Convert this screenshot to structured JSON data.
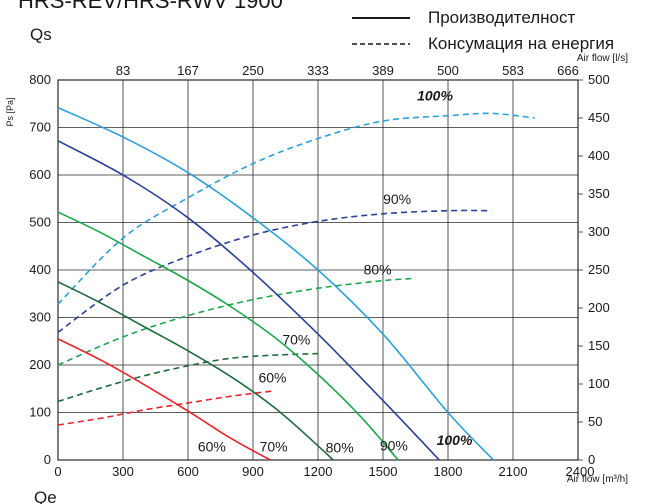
{
  "chart_data": {
    "type": "line",
    "title_partial": "HRS-REV/HRS-RWV 1900",
    "legend": {
      "performance_label": "Производителност",
      "power_label": "Консумация на енергия"
    },
    "left_axis": {
      "top_label": "Qs",
      "ylabel": "Ps [Pa]",
      "ylim": [
        0,
        800
      ],
      "ticks": [
        "0",
        "100",
        "200",
        "300",
        "400",
        "500",
        "600",
        "700",
        "800"
      ]
    },
    "right_axis": {
      "ylim": [
        0,
        500
      ],
      "ticks": [
        "0",
        "50",
        "100",
        "150",
        "200",
        "250",
        "300",
        "350",
        "400",
        "450",
        "500"
      ]
    },
    "bottom_axis": {
      "xlabel": "Air flow [m³/h]",
      "xlim": [
        0,
        2400
      ],
      "ticks": [
        "0",
        "300",
        "600",
        "900",
        "1200",
        "1500",
        "1800",
        "2100",
        "2400"
      ],
      "bottom_label": "Qe"
    },
    "top_axis": {
      "xlabel": "Air flow [l/s]",
      "ticks": [
        "83",
        "167",
        "250",
        "333",
        "389",
        "500",
        "583",
        "666"
      ]
    },
    "grid": true,
    "colors": {
      "red": "#e8232a",
      "dark_green": "#1d6b3c",
      "green": "#1ca64c",
      "navy": "#2b3f98",
      "light_blue": "#2da0d8"
    },
    "performance_series": [
      {
        "color": "red",
        "x": [
          0,
          200,
          400,
          600,
          800,
          980
        ],
        "y": [
          255,
          210,
          158,
          103,
          45,
          0
        ]
      },
      {
        "color": "dark_green",
        "x": [
          0,
          200,
          400,
          600,
          800,
          1000,
          1200,
          1270
        ],
        "y": [
          375,
          330,
          280,
          230,
          175,
          110,
          30,
          0
        ]
      },
      {
        "color": "green",
        "x": [
          0,
          200,
          400,
          600,
          800,
          1000,
          1200,
          1400,
          1570
        ],
        "y": [
          522,
          478,
          428,
          378,
          322,
          258,
          180,
          90,
          0
        ]
      },
      {
        "color": "navy",
        "x": [
          0,
          300,
          600,
          900,
          1200,
          1500,
          1760
        ],
        "y": [
          672,
          600,
          510,
          395,
          265,
          125,
          0
        ]
      },
      {
        "color": "light_blue",
        "x": [
          0,
          300,
          600,
          900,
          1200,
          1500,
          1800,
          2010
        ],
        "y": [
          742,
          680,
          605,
          510,
          400,
          265,
          100,
          0
        ]
      }
    ],
    "power_series": [
      {
        "color": "red",
        "x": [
          0,
          200,
          400,
          600,
          800,
          1000
        ],
        "y_right": [
          46,
          55,
          66,
          75,
          84,
          91
        ]
      },
      {
        "color": "dark_green",
        "x": [
          0,
          200,
          400,
          600,
          800,
          1000,
          1200
        ],
        "y_right": [
          77,
          95,
          111,
          124,
          134,
          138,
          140
        ]
      },
      {
        "color": "green",
        "x": [
          0,
          300,
          600,
          900,
          1200,
          1500,
          1650
        ],
        "y_right": [
          125,
          162,
          190,
          211,
          226,
          236,
          239
        ]
      },
      {
        "color": "navy",
        "x": [
          0,
          300,
          600,
          900,
          1200,
          1500,
          1800,
          2000
        ],
        "y_right": [
          168,
          230,
          268,
          296,
          314,
          324,
          328,
          328
        ]
      },
      {
        "color": "light_blue",
        "x": [
          0,
          300,
          600,
          900,
          1200,
          1500,
          1800,
          2000,
          2200
        ],
        "y_right": [
          205,
          292,
          345,
          390,
          423,
          446,
          453,
          456,
          450
        ]
      }
    ],
    "annotations": [
      {
        "text": "100%",
        "x": 1740,
        "y_right": 473,
        "bold": true,
        "italic": true
      },
      {
        "text": "90%",
        "x": 1565,
        "y_right": 337
      },
      {
        "text": "80%",
        "x": 1475,
        "y_right": 244
      },
      {
        "text": "70%",
        "x": 1100,
        "y_right": 152
      },
      {
        "text": "60%",
        "x": 990,
        "y_right": 102
      },
      {
        "text": "60%",
        "x": 710,
        "y": 18
      },
      {
        "text": "70%",
        "x": 995,
        "y": 18
      },
      {
        "text": "80%",
        "x": 1300,
        "y": 16
      },
      {
        "text": "90%",
        "x": 1550,
        "y": 20
      },
      {
        "text": "100%",
        "x": 1830,
        "y": 32,
        "bold": true,
        "italic": true
      }
    ]
  }
}
